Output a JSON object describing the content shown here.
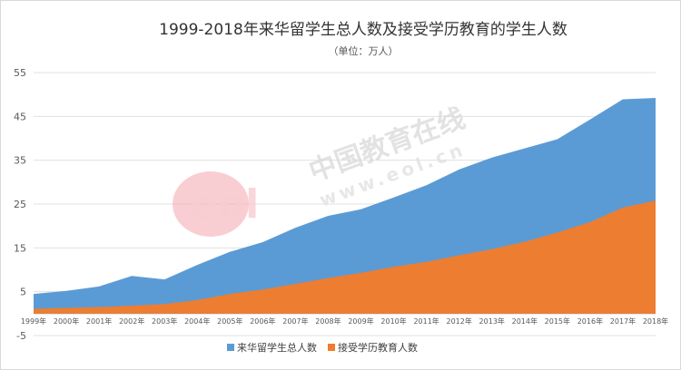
{
  "chart_data": {
    "type": "area",
    "title": "1999-2018年来华留学生总人数及接受学历教育的学生人数",
    "subtitle": "（单位：万人）",
    "categories": [
      "1999年",
      "2000年",
      "2001年",
      "2002年",
      "2003年",
      "2004年",
      "2005年",
      "2006年",
      "2007年",
      "2008年",
      "2009年",
      "2010年",
      "2011年",
      "2012年",
      "2013年",
      "2014年",
      "2015年",
      "2016年",
      "2017年",
      "2018年"
    ],
    "series": [
      {
        "name": "来华留学生总人数",
        "color": "#5b9bd5",
        "values": [
          4.5,
          5.2,
          6.2,
          8.6,
          7.8,
          11.1,
          14.1,
          16.3,
          19.6,
          22.3,
          23.8,
          26.5,
          29.3,
          32.9,
          35.6,
          37.7,
          39.8,
          44.3,
          48.9,
          49.2
        ]
      },
      {
        "name": "接受学历教育人数",
        "color": "#ed7d31",
        "values": [
          1.1,
          1.3,
          1.5,
          1.8,
          2.2,
          3.1,
          4.5,
          5.5,
          6.8,
          8.1,
          9.3,
          10.7,
          11.8,
          13.3,
          14.7,
          16.4,
          18.5,
          20.9,
          24.2,
          25.8
        ]
      }
    ],
    "yticks": [
      55,
      45,
      35,
      25,
      15,
      5,
      -5
    ],
    "ylim": [
      -5,
      55
    ],
    "legend_position": "bottom",
    "grid": true
  },
  "watermark": {
    "logo_text": "eol",
    "name": "中国教育在线",
    "url": "www.eol.cn"
  }
}
